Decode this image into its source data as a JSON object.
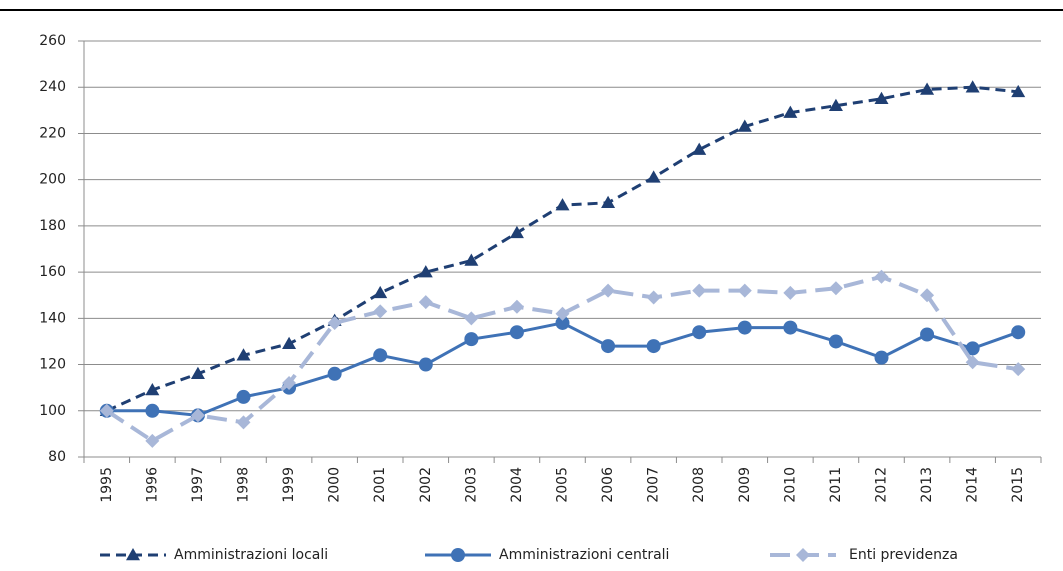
{
  "chart_data": {
    "type": "line",
    "categories": [
      "1995",
      "1996",
      "1997",
      "1998",
      "1999",
      "2000",
      "2001",
      "2002",
      "2003",
      "2004",
      "2005",
      "2006",
      "2007",
      "2008",
      "2009",
      "2010",
      "2011",
      "2012",
      "2013",
      "2014",
      "2015"
    ],
    "series": [
      {
        "name": "Amministrazioni locali",
        "color": "#1f3f73",
        "dash": "dashed",
        "marker": "triangle",
        "values": [
          100,
          109,
          116,
          124,
          129,
          139,
          151,
          160,
          165,
          177,
          189,
          190,
          201,
          213,
          223,
          229,
          232,
          235,
          239,
          240,
          238
        ]
      },
      {
        "name": "Amministrazioni centrali",
        "color": "#3f72b6",
        "dash": "solid",
        "marker": "circle",
        "values": [
          100,
          100,
          98,
          106,
          110,
          116,
          124,
          120,
          131,
          134,
          138,
          128,
          128,
          134,
          136,
          136,
          130,
          123,
          133,
          127,
          134
        ]
      },
      {
        "name": "Enti previdenza",
        "color": "#a8b7d8",
        "dash": "longdash",
        "marker": "diamond",
        "values": [
          100,
          87,
          98,
          95,
          112,
          138,
          143,
          147,
          140,
          145,
          142,
          152,
          149,
          152,
          152,
          151,
          153,
          158,
          150,
          121,
          118
        ]
      }
    ],
    "ylim": [
      80,
      260
    ],
    "yticks": [
      80,
      100,
      120,
      140,
      160,
      180,
      200,
      220,
      240,
      260
    ],
    "grid": true
  }
}
